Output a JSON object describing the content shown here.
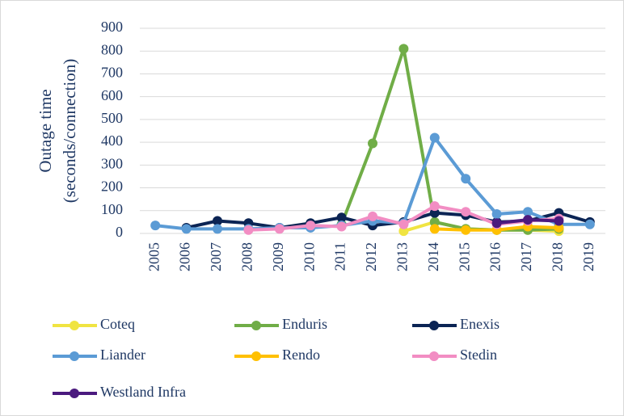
{
  "chart_data": {
    "type": "line",
    "y_label": [
      "Outage time",
      "(seconds/connection)"
    ],
    "categories": [
      "2005",
      "2006",
      "2007",
      "2008",
      "2009",
      "2010",
      "2011",
      "2012",
      "2013",
      "2014",
      "2015",
      "2016",
      "2017",
      "2018",
      "2019"
    ],
    "ylim": [
      0,
      900
    ],
    "yticks": [
      0,
      100,
      200,
      300,
      400,
      500,
      600,
      700,
      800,
      900
    ],
    "grid": true,
    "series": [
      {
        "name": "Coteq",
        "color": "#f0e442",
        "values": [
          null,
          null,
          null,
          null,
          null,
          null,
          null,
          null,
          10,
          50,
          20,
          15,
          15,
          10,
          null
        ]
      },
      {
        "name": "Enduris",
        "color": "#70ad47",
        "values": [
          null,
          null,
          null,
          null,
          null,
          null,
          40,
          395,
          810,
          50,
          20,
          15,
          15,
          20,
          null
        ]
      },
      {
        "name": "Enexis",
        "color": "#0b2454",
        "values": [
          null,
          25,
          55,
          45,
          25,
          45,
          70,
          35,
          50,
          90,
          80,
          50,
          55,
          90,
          50
        ]
      },
      {
        "name": "Liander",
        "color": "#5b9bd5",
        "values": [
          35,
          20,
          20,
          20,
          25,
          25,
          35,
          55,
          45,
          420,
          240,
          85,
          95,
          40,
          40
        ]
      },
      {
        "name": "Rendo",
        "color": "#ffc000",
        "values": [
          null,
          null,
          null,
          null,
          null,
          null,
          null,
          null,
          null,
          20,
          15,
          15,
          30,
          25,
          null
        ]
      },
      {
        "name": "Stedin",
        "color": "#f28dc3",
        "values": [
          null,
          null,
          null,
          15,
          20,
          35,
          30,
          75,
          40,
          120,
          95,
          40,
          55,
          65,
          null
        ]
      },
      {
        "name": "Westland Infra",
        "color": "#4b1a7e",
        "values": [
          null,
          null,
          null,
          null,
          null,
          null,
          null,
          null,
          null,
          null,
          null,
          45,
          60,
          55,
          null
        ]
      }
    ]
  }
}
